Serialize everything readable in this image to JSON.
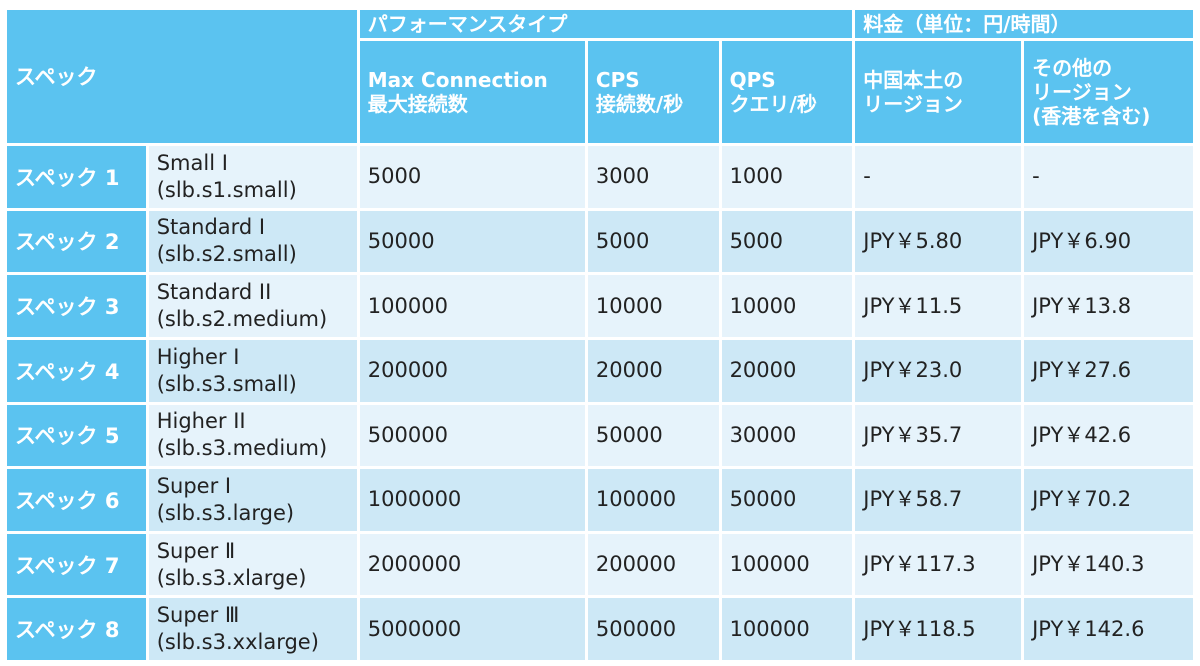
{
  "header": {
    "spec": "スペック",
    "performance_type": "パフォーマンスタイプ",
    "price_group": "料金（単位：円/時間）",
    "max_connection_line1": "Max Connection",
    "max_connection_line2": "最大接続数",
    "cps_line1": "CPS",
    "cps_line2": "接続数/秒",
    "qps_line1": "QPS",
    "qps_line2": "クエリ/秒",
    "mainland_line1": "中国本土の",
    "mainland_line2": "リージョン",
    "other_line1": "その他の",
    "other_line2": "リージョン",
    "other_line3": "(香港を含む)"
  },
  "rows": [
    {
      "spec": "スペック 1",
      "model_name": "Small I",
      "model_id": "(slb.s1.small)",
      "max_connection": "5000",
      "cps": "3000",
      "qps": "1000",
      "price_mainland": "-",
      "price_other": "-"
    },
    {
      "spec": "スペック 2",
      "model_name": "Standard I",
      "model_id": "(slb.s2.small)",
      "max_connection": "50000",
      "cps": "5000",
      "qps": "5000",
      "price_mainland": "JPY￥5.80",
      "price_other": "JPY￥6.90"
    },
    {
      "spec": "スペック 3",
      "model_name": "Standard II",
      "model_id": "(slb.s2.medium)",
      "max_connection": "100000",
      "cps": "10000",
      "qps": "10000",
      "price_mainland": "JPY￥11.5",
      "price_other": "JPY￥13.8"
    },
    {
      "spec": "スペック 4",
      "model_name": "Higher I",
      "model_id": "(slb.s3.small)",
      "max_connection": "200000",
      "cps": "20000",
      "qps": "20000",
      "price_mainland": "JPY￥23.0",
      "price_other": "JPY￥27.6"
    },
    {
      "spec": "スペック 5",
      "model_name": "Higher II",
      "model_id": "(slb.s3.medium)",
      "max_connection": "500000",
      "cps": "50000",
      "qps": "30000",
      "price_mainland": "JPY￥35.7",
      "price_other": "JPY￥42.6"
    },
    {
      "spec": "スペック 6",
      "model_name": "Super I",
      "model_id": "(slb.s3.large)",
      "max_connection": "1000000",
      "cps": "100000",
      "qps": "50000",
      "price_mainland": "JPY￥58.7",
      "price_other": "JPY￥70.2"
    },
    {
      "spec": "スペック 7",
      "model_name": "Super Ⅱ",
      "model_id": "(slb.s3.xlarge)",
      "max_connection": "2000000",
      "cps": "200000",
      "qps": "100000",
      "price_mainland": "JPY￥117.3",
      "price_other": "JPY￥140.3"
    },
    {
      "spec": "スペック 8",
      "model_name": "Super Ⅲ",
      "model_id": "(slb.s3.xxlarge)",
      "max_connection": "5000000",
      "cps": "500000",
      "qps": "100000",
      "price_mainland": "JPY￥118.5",
      "price_other": "JPY￥142.6"
    }
  ],
  "colors": {
    "header_bg": "#5bc3f0",
    "row_light": "#e6f3fb",
    "row_dark": "#cde8f6",
    "header_text": "#ffffff"
  }
}
